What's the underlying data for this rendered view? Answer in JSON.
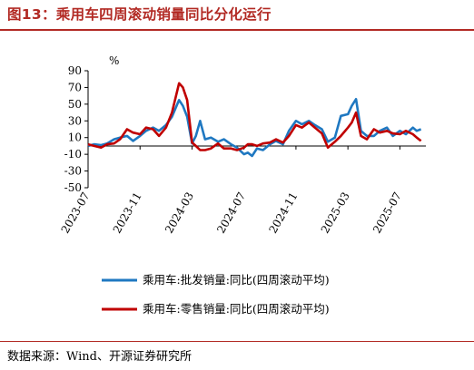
{
  "figure": {
    "title": "图13：乘用车四周滚动销量同比分化运行",
    "source": "数据来源：Wind、开源证券研究所"
  },
  "chart_data": {
    "type": "line",
    "unit": "%",
    "ylim": [
      -50,
      90
    ],
    "yticks": [
      90,
      70,
      50,
      30,
      10,
      -10,
      -30,
      -50
    ],
    "ytick_labels": [
      "90",
      "70",
      "50",
      "30",
      "10",
      "-10",
      "-30",
      "-50"
    ],
    "xlim": [
      "2023-07",
      "2025-09"
    ],
    "xticks": [
      "2023-07",
      "2023-11",
      "2024-03",
      "2024-07",
      "2024-11",
      "2025-03",
      "2025-07"
    ],
    "grid": false,
    "legend_position": "bottom",
    "colors": {
      "wholesale": "#1f78c1",
      "retail": "#c00000"
    },
    "series": [
      {
        "name": "乘用车:批发销量:同比(四周滚动平均)",
        "color": "#1f78c1",
        "points": [
          [
            "2023-07-01",
            0
          ],
          [
            "2023-07-15",
            2
          ],
          [
            "2023-08-01",
            1
          ],
          [
            "2023-08-15",
            3
          ],
          [
            "2023-09-01",
            8
          ],
          [
            "2023-09-15",
            10
          ],
          [
            "2023-10-01",
            12
          ],
          [
            "2023-10-15",
            6
          ],
          [
            "2023-11-01",
            12
          ],
          [
            "2023-11-15",
            18
          ],
          [
            "2023-12-01",
            22
          ],
          [
            "2023-12-15",
            18
          ],
          [
            "2024-01-01",
            25
          ],
          [
            "2024-01-15",
            35
          ],
          [
            "2024-02-01",
            55
          ],
          [
            "2024-02-10",
            48
          ],
          [
            "2024-02-20",
            35
          ],
          [
            "2024-03-01",
            3
          ],
          [
            "2024-03-10",
            12
          ],
          [
            "2024-03-20",
            30
          ],
          [
            "2024-04-01",
            8
          ],
          [
            "2024-04-15",
            10
          ],
          [
            "2024-05-01",
            5
          ],
          [
            "2024-05-15",
            8
          ],
          [
            "2024-06-01",
            2
          ],
          [
            "2024-06-15",
            -2
          ],
          [
            "2024-07-01",
            -10
          ],
          [
            "2024-07-10",
            -8
          ],
          [
            "2024-07-20",
            -12
          ],
          [
            "2024-08-01",
            -3
          ],
          [
            "2024-08-15",
            -5
          ],
          [
            "2024-09-01",
            2
          ],
          [
            "2024-09-15",
            6
          ],
          [
            "2024-10-01",
            2
          ],
          [
            "2024-10-15",
            18
          ],
          [
            "2024-11-01",
            30
          ],
          [
            "2024-11-15",
            26
          ],
          [
            "2024-12-01",
            30
          ],
          [
            "2024-12-15",
            25
          ],
          [
            "2025-01-01",
            20
          ],
          [
            "2025-01-15",
            5
          ],
          [
            "2025-02-01",
            10
          ],
          [
            "2025-02-15",
            36
          ],
          [
            "2025-03-01",
            38
          ],
          [
            "2025-03-10",
            48
          ],
          [
            "2025-03-20",
            56
          ],
          [
            "2025-04-01",
            18
          ],
          [
            "2025-04-15",
            12
          ],
          [
            "2025-05-01",
            12
          ],
          [
            "2025-05-15",
            18
          ],
          [
            "2025-06-01",
            22
          ],
          [
            "2025-06-15",
            12
          ],
          [
            "2025-07-01",
            18
          ],
          [
            "2025-07-15",
            14
          ],
          [
            "2025-08-01",
            22
          ],
          [
            "2025-08-10",
            18
          ],
          [
            "2025-08-20",
            20
          ]
        ]
      },
      {
        "name": "乘用车:零售销量:同比(四周滚动平均)",
        "color": "#c00000",
        "points": [
          [
            "2023-07-01",
            2
          ],
          [
            "2023-07-15",
            0
          ],
          [
            "2023-08-01",
            -2
          ],
          [
            "2023-08-15",
            2
          ],
          [
            "2023-09-01",
            3
          ],
          [
            "2023-09-15",
            8
          ],
          [
            "2023-10-01",
            20
          ],
          [
            "2023-10-15",
            16
          ],
          [
            "2023-11-01",
            14
          ],
          [
            "2023-11-15",
            22
          ],
          [
            "2023-12-01",
            20
          ],
          [
            "2023-12-15",
            12
          ],
          [
            "2024-01-01",
            22
          ],
          [
            "2024-01-15",
            40
          ],
          [
            "2024-02-01",
            75
          ],
          [
            "2024-02-10",
            70
          ],
          [
            "2024-02-20",
            55
          ],
          [
            "2024-03-01",
            4
          ],
          [
            "2024-03-10",
            0
          ],
          [
            "2024-03-20",
            -5
          ],
          [
            "2024-04-01",
            -5
          ],
          [
            "2024-04-15",
            -3
          ],
          [
            "2024-05-01",
            3
          ],
          [
            "2024-05-15",
            -3
          ],
          [
            "2024-06-01",
            -3
          ],
          [
            "2024-06-15",
            -5
          ],
          [
            "2024-07-01",
            -2
          ],
          [
            "2024-07-10",
            2
          ],
          [
            "2024-07-20",
            2
          ],
          [
            "2024-08-01",
            0
          ],
          [
            "2024-08-15",
            3
          ],
          [
            "2024-09-01",
            4
          ],
          [
            "2024-09-15",
            8
          ],
          [
            "2024-10-01",
            4
          ],
          [
            "2024-10-15",
            12
          ],
          [
            "2024-11-01",
            25
          ],
          [
            "2024-11-15",
            22
          ],
          [
            "2024-12-01",
            28
          ],
          [
            "2024-12-15",
            22
          ],
          [
            "2025-01-01",
            15
          ],
          [
            "2025-01-15",
            -2
          ],
          [
            "2025-02-01",
            5
          ],
          [
            "2025-02-15",
            12
          ],
          [
            "2025-03-01",
            22
          ],
          [
            "2025-03-10",
            28
          ],
          [
            "2025-03-20",
            40
          ],
          [
            "2025-04-01",
            12
          ],
          [
            "2025-04-15",
            8
          ],
          [
            "2025-05-01",
            20
          ],
          [
            "2025-05-15",
            16
          ],
          [
            "2025-06-01",
            18
          ],
          [
            "2025-06-15",
            15
          ],
          [
            "2025-07-01",
            14
          ],
          [
            "2025-07-15",
            18
          ],
          [
            "2025-08-01",
            14
          ],
          [
            "2025-08-10",
            10
          ],
          [
            "2025-08-20",
            6
          ]
        ]
      }
    ]
  }
}
